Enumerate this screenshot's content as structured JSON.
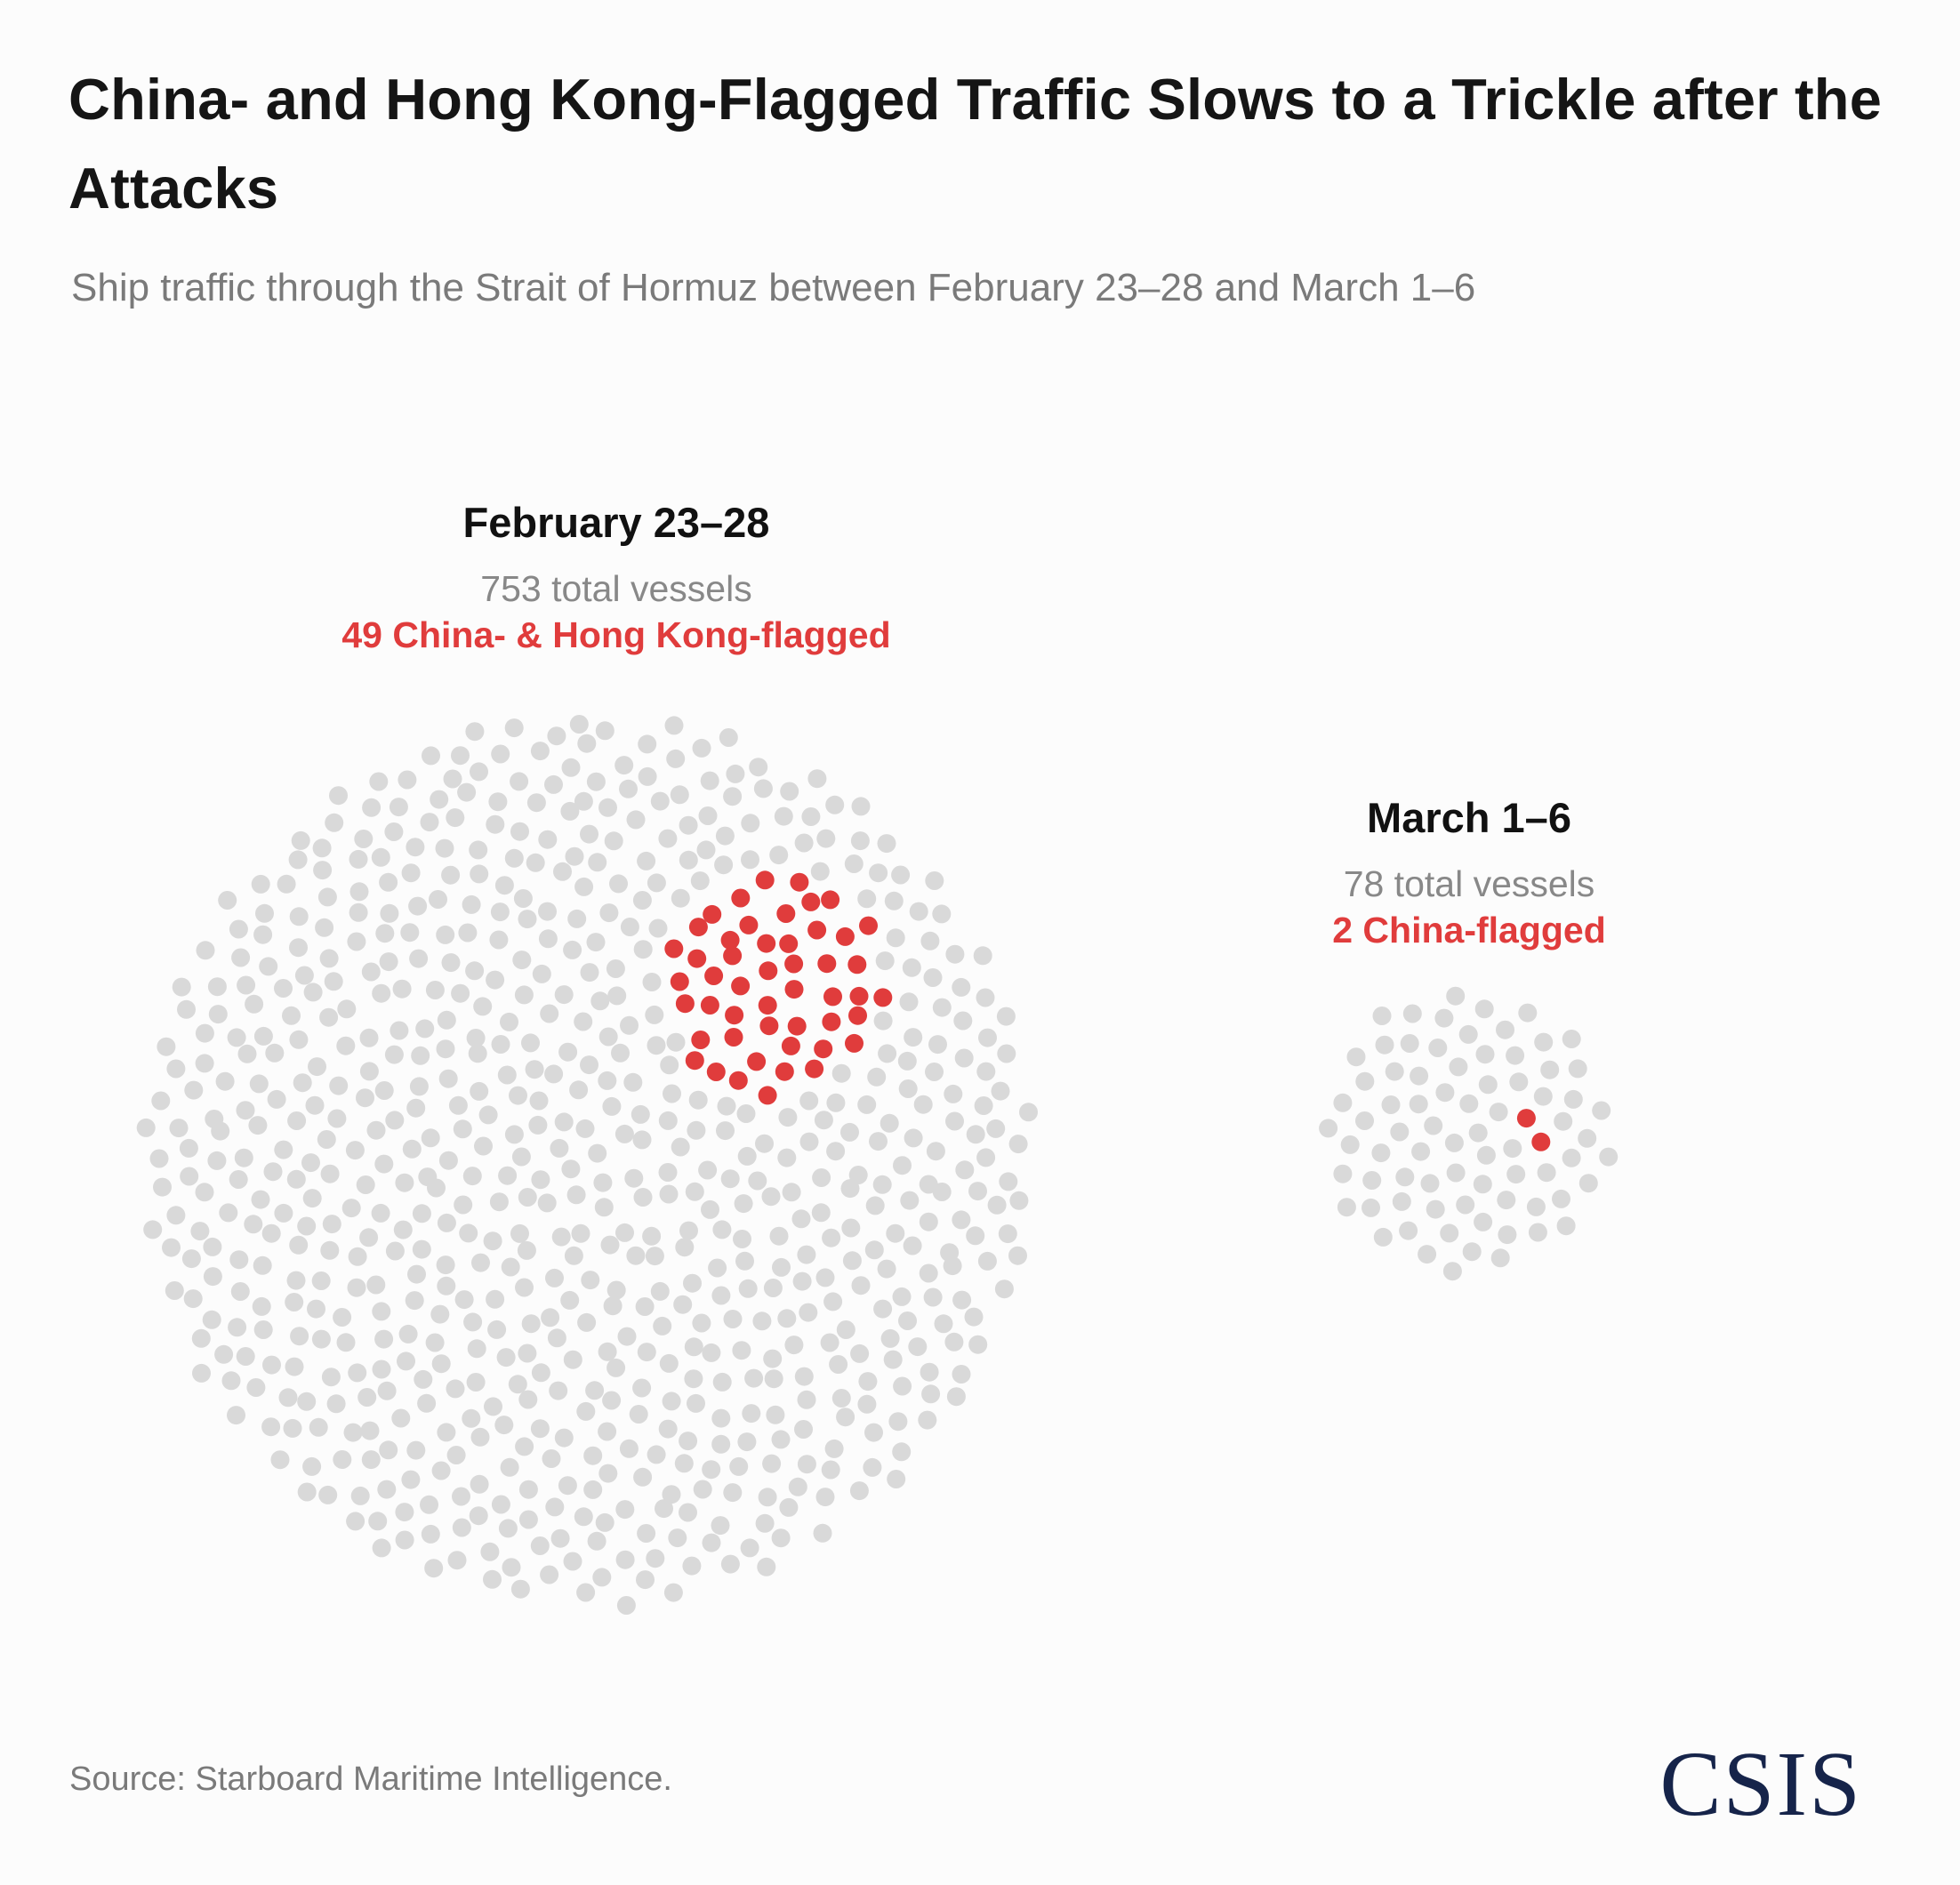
{
  "title": "China- and Hong Kong-Flagged Traffic Slows to a Trickle after the Attacks",
  "subtitle": "Ship traffic through the Strait of Hormuz between February 23–28 and March 1–6",
  "source": "Source: Starboard Maritime Intelligence.",
  "logo_text": "CSIS",
  "colors": {
    "other_vessels": "#d9d9d9",
    "flagged_vessels": "#e03c3c",
    "logo": "#16244a",
    "background": "#fcfcfc"
  },
  "chart_data": [
    {
      "type": "dot-cluster",
      "title": "February 23–28",
      "total_label": "753 total vessels",
      "highlight_label": "49 China- & Hong Kong-flagged",
      "total_vessels": 753,
      "highlighted_vessels": 49
    },
    {
      "type": "dot-cluster",
      "title": "March 1–6",
      "total_label": "78 total vessels",
      "highlight_label": "2 China-flagged",
      "total_vessels": 78,
      "highlighted_vessels": 2
    }
  ]
}
